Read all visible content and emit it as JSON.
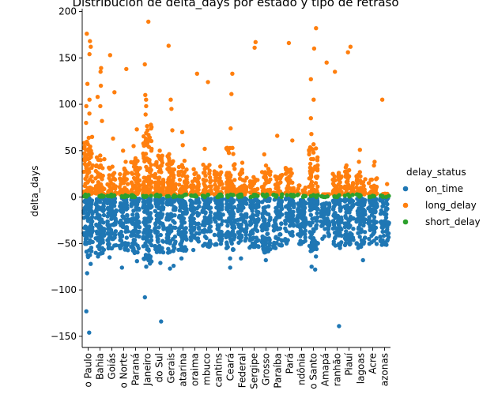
{
  "chart_data": {
    "type": "scatter",
    "subtype": "strip",
    "title": "Distribución de delta_days por estado y tipo de retraso",
    "xlabel": "",
    "ylabel": "delta_days",
    "ylim": [
      -162,
      203
    ],
    "yticks": [
      -150,
      -100,
      -50,
      0,
      50,
      100,
      150,
      200
    ],
    "ytick_labels": [
      "−150",
      "−100",
      "−50",
      "0",
      "50",
      "100",
      "150",
      "200"
    ],
    "grid": false,
    "legend_placement": "right",
    "legend_title": "delay_status",
    "categories": [
      "São Paulo",
      "Bahia",
      "Goiás",
      "Rio Grande do Norte",
      "Paraná",
      "Rio de Janeiro",
      "Rio Grande do Sul",
      "Minas Gerais",
      "Santa Catarina",
      "Roraima",
      "Pernambuco",
      "Tocantins",
      "Ceará",
      "Distrito Federal",
      "Sergipe",
      "Mato Grosso",
      "Paraíba",
      "Pará",
      "Rondônia",
      "Espírito Santo",
      "Amapá",
      "Maranhão",
      "Piauí",
      "Alagoas",
      "Acre",
      "Amazonas"
    ],
    "tick_labels": [
      "o Paulo",
      "Bahia",
      "Goiás",
      "o Norte",
      "Paraná",
      "Janeiro",
      "do Sul",
      "Gerais",
      "atarina",
      "oraima",
      "mbuco",
      "cantins",
      "Ceará",
      "Federal",
      "Sergipe",
      "Grosso",
      "Paraíba",
      "Pará",
      "ndônia",
      "o Santo",
      "Amapá",
      "ranhão",
      "Piauí",
      "lagoas",
      "Acre",
      "azonas"
    ],
    "series": [
      {
        "name": "on_time",
        "color": "#1f77b4",
        "range_min": [
          -65,
          -62,
          -58,
          -58,
          -62,
          -72,
          -62,
          -60,
          -58,
          -50,
          -55,
          -52,
          -58,
          -50,
          -56,
          -60,
          -55,
          -50,
          -52,
          -60,
          -45,
          -55,
          -52,
          -55,
          -52,
          -52
        ],
        "range_max": [
          -1,
          -1,
          -1,
          -1,
          -1,
          -1,
          -1,
          -1,
          -1,
          -1,
          -1,
          -1,
          -1,
          -1,
          -1,
          -1,
          -1,
          -1,
          -1,
          -1,
          -6,
          -1,
          -1,
          -1,
          -1,
          -1
        ],
        "outliers": [
          {
            "category": "São Paulo",
            "values": [
              -72,
              -82,
              -123,
              -146
            ]
          },
          {
            "category": "Bahia",
            "values": [
              -64
            ]
          },
          {
            "category": "Goiás",
            "values": [
              -65
            ]
          },
          {
            "category": "Rio Grande do Norte",
            "values": [
              -76
            ]
          },
          {
            "category": "Paraná",
            "values": [
              -69
            ]
          },
          {
            "category": "Rio de Janeiro",
            "values": [
              -75,
              -108
            ]
          },
          {
            "category": "Rio Grande do Sul",
            "values": [
              -71,
              -134
            ]
          },
          {
            "category": "Minas Gerais",
            "values": [
              -74,
              -77
            ]
          },
          {
            "category": "Santa Catarina",
            "values": [
              -66
            ]
          },
          {
            "category": "Roraima",
            "values": [
              -57
            ]
          },
          {
            "category": "Ceará",
            "values": [
              -66,
              -76
            ]
          },
          {
            "category": "Distrito Federal",
            "values": [
              -66
            ]
          },
          {
            "category": "Mato Grosso",
            "values": [
              -68
            ]
          },
          {
            "category": "Paraíba",
            "values": [
              -55
            ]
          },
          {
            "category": "Espírito Santo",
            "values": [
              -64,
              -75,
              -78
            ]
          },
          {
            "category": "Maranhão",
            "values": [
              -139
            ]
          },
          {
            "category": "Alagoas",
            "values": [
              -68
            ]
          }
        ]
      },
      {
        "name": "long_delay",
        "color": "#ff7f0e",
        "range_min": [
          3,
          3,
          3,
          3,
          3,
          3,
          3,
          3,
          3,
          3,
          3,
          3,
          3,
          3,
          3,
          3,
          3,
          3,
          3,
          3,
          3,
          3,
          3,
          3,
          3,
          3
        ],
        "range_max": [
          65,
          45,
          35,
          32,
          42,
          80,
          48,
          48,
          40,
          28,
          36,
          28,
          55,
          30,
          24,
          32,
          25,
          32,
          14,
          58,
          3,
          30,
          35,
          28,
          24,
          4
        ],
        "outliers": [
          {
            "category": "São Paulo",
            "values": [
              176,
              168,
              162,
              154,
              122,
              105,
              98,
              90,
              80
            ]
          },
          {
            "category": "Bahia",
            "values": [
              139,
              135,
              120,
              108,
              98,
              82
            ]
          },
          {
            "category": "Goiás",
            "values": [
              153,
              113,
              63
            ]
          },
          {
            "category": "Rio Grande do Norte",
            "values": [
              138,
              50,
              38
            ]
          },
          {
            "category": "Paraná",
            "values": [
              73,
              55
            ]
          },
          {
            "category": "Rio de Janeiro",
            "values": [
              189,
              143,
              110,
              105,
              98,
              89
            ]
          },
          {
            "category": "Rio Grande do Sul",
            "values": [
              50
            ]
          },
          {
            "category": "Minas Gerais",
            "values": [
              163,
              105,
              95,
              72
            ]
          },
          {
            "category": "Santa Catarina",
            "values": [
              70,
              56
            ]
          },
          {
            "category": "Roraima",
            "values": [
              133,
              30
            ]
          },
          {
            "category": "Pernambuco",
            "values": [
              124,
              52
            ]
          },
          {
            "category": "Tocantins",
            "values": [
              33
            ]
          },
          {
            "category": "Ceará",
            "values": [
              133,
              111,
              74
            ]
          },
          {
            "category": "Distrito Federal",
            "values": [
              37
            ]
          },
          {
            "category": "Sergipe",
            "values": [
              167,
              161
            ]
          },
          {
            "category": "Mato Grosso",
            "values": [
              46,
              34
            ]
          },
          {
            "category": "Paraíba",
            "values": [
              66
            ]
          },
          {
            "category": "Pará",
            "values": [
              166,
              61
            ]
          },
          {
            "category": "Espírito Santo",
            "values": [
              182,
              160,
              127,
              105,
              85,
              68
            ]
          },
          {
            "category": "Amapá",
            "values": [
              145
            ]
          },
          {
            "category": "Maranhão",
            "values": [
              135
            ]
          },
          {
            "category": "Piauí",
            "values": [
              162,
              156
            ]
          },
          {
            "category": "Alagoas",
            "values": [
              51,
              38
            ]
          },
          {
            "category": "Acre",
            "values": [
              38,
              34
            ]
          },
          {
            "category": "Amazonas",
            "values": [
              105,
              14
            ]
          }
        ]
      },
      {
        "name": "short_delay",
        "color": "#2ca02c",
        "range_min": [
          0,
          0,
          0,
          0,
          0,
          0,
          0,
          0,
          0,
          0,
          0,
          0,
          0,
          0,
          0,
          0,
          0,
          0,
          0,
          0,
          0,
          0,
          0,
          0,
          0,
          0
        ],
        "range_max": [
          3,
          3,
          3,
          3,
          3,
          3,
          3,
          3,
          3,
          3,
          3,
          3,
          3,
          3,
          3,
          3,
          3,
          3,
          3,
          3,
          1,
          3,
          3,
          3,
          2,
          3
        ],
        "outliers": []
      }
    ]
  }
}
